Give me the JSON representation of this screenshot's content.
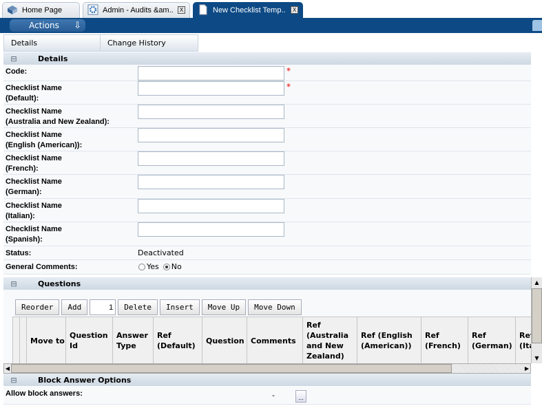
{
  "tabs": [
    {
      "label": "Home Page",
      "icon": "home-icon"
    },
    {
      "label": "Admin - Audits &am..",
      "icon": "gear-icon",
      "close": "X"
    },
    {
      "label": "New Checklist Temp..",
      "icon": "document-icon",
      "close": "X",
      "active": true
    }
  ],
  "actions_label": "Actions",
  "subtabs": [
    "Details",
    "Change History"
  ],
  "details": {
    "title": "Details",
    "collapse": "⊟",
    "fields": [
      {
        "label": "Code:",
        "value": "",
        "required": true
      },
      {
        "label": "Checklist Name\n(Default):",
        "value": "",
        "required": true
      },
      {
        "label": "Checklist Name\n(Australia and New Zealand):",
        "value": ""
      },
      {
        "label": "Checklist Name\n(English (American)):",
        "value": ""
      },
      {
        "label": "Checklist Name\n(French):",
        "value": ""
      },
      {
        "label": "Checklist Name\n(German):",
        "value": ""
      },
      {
        "label": "Checklist Name\n(Italian):",
        "value": ""
      },
      {
        "label": "Checklist Name\n(Spanish):",
        "value": ""
      }
    ],
    "required_mark": "*",
    "status_label": "Status:",
    "status_value": "Deactivated",
    "comments_label": "General Comments:",
    "yes": "Yes",
    "no": "No",
    "selected": "No"
  },
  "questions": {
    "title": "Questions",
    "buttons": [
      "Reorder",
      "Add",
      "Delete",
      "Insert",
      "Move Up",
      "Move Down"
    ],
    "add_count": "1",
    "columns": [
      "",
      "",
      "Move to",
      "Question Id",
      "Answer Type",
      "Ref (Default)",
      "Question",
      "Comments",
      "Ref (Australia and New Zealand)",
      "Ref (English (American))",
      "Ref (French)",
      "Ref (German)",
      "Ref (Ital"
    ]
  },
  "block": {
    "title": "Block Answer Options",
    "label": "Allow block answers:",
    "value": "-",
    "button": "..."
  }
}
